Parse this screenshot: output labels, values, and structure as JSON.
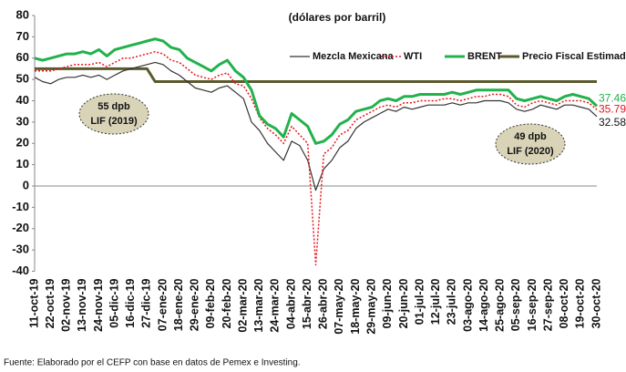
{
  "chart_data": {
    "type": "line",
    "subtitle": "(dólares por barril)",
    "source": "Fuente: Elaborado por el CEFP con base en datos de Pemex e Investing.",
    "categories": [
      "11-oct-19",
      null,
      "22-oct-19",
      null,
      "02-nov-19",
      null,
      "13-nov-19",
      null,
      "24-nov-19",
      null,
      "05-dic-19",
      null,
      "16-dic-19",
      null,
      "27-dic-19",
      null,
      "07-ene-20",
      null,
      "18-ene-20",
      null,
      "29-ene-20",
      null,
      "09-feb-20",
      null,
      "20-feb-20",
      null,
      "02-mar-20",
      null,
      "13-mar-20",
      null,
      "24-mar-20",
      null,
      "04-abr-20",
      null,
      "15-abr-20",
      null,
      "26-abr-20",
      null,
      "07-may-20",
      null,
      "18-may-20",
      null,
      "29-may-20",
      null,
      "09-jun-20",
      null,
      "20-jun-20",
      null,
      "01-jul-20",
      null,
      "12-jul-20",
      null,
      "23-jul-20",
      null,
      "03-ago-20",
      null,
      "14-ago-20",
      null,
      "25-ago-20",
      null,
      "05-sep-20",
      null,
      "16-sep-20",
      null,
      "27-sep-20",
      null,
      "08-oct-20",
      null,
      "19-oct-20",
      null,
      "30-oct-20"
    ],
    "series": [
      {
        "name": "Mezcla Mexicana",
        "color": "#333333",
        "width": 1.2,
        "line_style": "solid",
        "values": [
          51,
          49,
          48,
          50,
          51,
          51,
          52,
          51,
          52,
          50,
          52,
          54,
          55,
          56,
          57,
          58,
          57,
          54,
          52,
          49,
          46,
          45,
          44,
          46,
          47,
          44,
          41,
          30,
          26,
          20,
          16,
          12,
          21,
          19,
          12,
          -2,
          8,
          12,
          18,
          21,
          27,
          30,
          32,
          34,
          36,
          35,
          37,
          36,
          37,
          38,
          38,
          38,
          39,
          38,
          39,
          39,
          40,
          40,
          40,
          39,
          36,
          35,
          36,
          38,
          37,
          36,
          38,
          38,
          37,
          36,
          32.58
        ]
      },
      {
        "name": "WTI",
        "color": "#e8141b",
        "width": 1.5,
        "line_style": "dotted",
        "values": [
          54,
          54,
          54,
          55,
          56,
          57,
          57,
          57,
          58,
          56,
          58,
          60,
          60,
          61,
          62,
          63,
          62,
          59,
          58,
          55,
          52,
          51,
          50,
          52,
          53,
          48,
          47,
          41,
          32,
          27,
          24,
          20,
          28,
          24,
          20,
          -37,
          15,
          18,
          24,
          26,
          31,
          33,
          35,
          37,
          38,
          37,
          39,
          39,
          40,
          40,
          40,
          41,
          41,
          40,
          41,
          42,
          42,
          43,
          43,
          42,
          38,
          37,
          39,
          40,
          39,
          38,
          40,
          40,
          40,
          39,
          35.79
        ]
      },
      {
        "name": "BRENT",
        "color": "#22b14c",
        "width": 3,
        "line_style": "solid",
        "values": [
          60,
          59,
          60,
          61,
          62,
          62,
          63,
          62,
          64,
          61,
          64,
          65,
          66,
          67,
          68,
          69,
          68,
          65,
          64,
          60,
          58,
          56,
          54,
          57,
          59,
          54,
          51,
          45,
          33,
          29,
          27,
          23,
          34,
          31,
          28,
          20,
          21,
          24,
          29,
          31,
          35,
          36,
          37,
          40,
          41,
          40,
          42,
          42,
          43,
          43,
          43,
          43,
          44,
          43,
          44,
          45,
          45,
          45,
          45,
          45,
          41,
          40,
          41,
          42,
          41,
          40,
          42,
          43,
          42,
          41,
          37.46
        ]
      },
      {
        "name": "Precio Fiscal Estimado",
        "color": "#5b5a2c",
        "width": 3,
        "line_style": "solid",
        "values": [
          55,
          55,
          55,
          55,
          55,
          55,
          55,
          55,
          55,
          55,
          55,
          55,
          55,
          55,
          55,
          49,
          49,
          49,
          49,
          49,
          49,
          49,
          49,
          49,
          49,
          49,
          49,
          49,
          49,
          49,
          49,
          49,
          49,
          49,
          49,
          49,
          49,
          49,
          49,
          49,
          49,
          49,
          49,
          49,
          49,
          49,
          49,
          49,
          49,
          49,
          49,
          49,
          49,
          49,
          49,
          49,
          49,
          49,
          49,
          49,
          49,
          49,
          49,
          49,
          49,
          49,
          49,
          49,
          49,
          49,
          49
        ]
      }
    ],
    "annotations": [
      {
        "lines": [
          "55 dpb",
          "LIF (2019)"
        ]
      },
      {
        "lines": [
          "49 dpb",
          "LIF (2020)"
        ]
      }
    ],
    "ylim": [
      -40,
      80
    ],
    "yticks": [
      -40,
      -30,
      -20,
      -10,
      0,
      10,
      20,
      30,
      40,
      50,
      60,
      70,
      80
    ],
    "grid": false,
    "legend": "upper right"
  }
}
